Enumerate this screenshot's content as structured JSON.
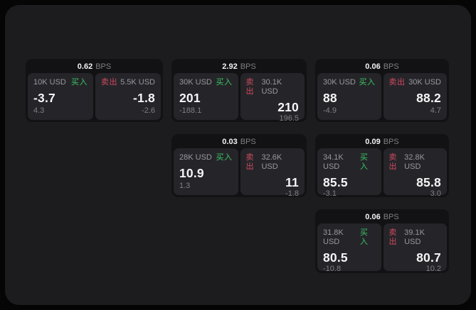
{
  "labels": {
    "buy": "买入",
    "sell": "卖出",
    "bps": "BPS"
  },
  "colors": {
    "buy_green": "#3cc464",
    "sell_red": "#d04a60",
    "window_bg": "#1c1c1e",
    "card_bg": "#121214",
    "pane_bg": "#252529"
  },
  "cards": [
    {
      "bps": "0.62",
      "grid": {
        "col": 1,
        "row": 1
      },
      "buy": {
        "amount": "10K USD",
        "value": "-3.7",
        "sub": "4.3"
      },
      "sell": {
        "amount": "5.5K USD",
        "value": "-1.8",
        "sub": "-2.6"
      }
    },
    {
      "bps": "2.92",
      "grid": {
        "col": 2,
        "row": 1
      },
      "buy": {
        "amount": "30K USD",
        "value": "201",
        "sub": "-188.1"
      },
      "sell": {
        "amount": "30.1K USD",
        "value": "210",
        "sub": "196.5"
      }
    },
    {
      "bps": "0.06",
      "grid": {
        "col": 3,
        "row": 1
      },
      "buy": {
        "amount": "30K USD",
        "value": "88",
        "sub": "-4.9"
      },
      "sell": {
        "amount": "30K USD",
        "value": "88.2",
        "sub": "4.7"
      }
    },
    {
      "bps": "0.03",
      "grid": {
        "col": 2,
        "row": 2
      },
      "buy": {
        "amount": "28K USD",
        "value": "10.9",
        "sub": "1.3"
      },
      "sell": {
        "amount": "32.6K USD",
        "value": "11",
        "sub": "-1.8"
      }
    },
    {
      "bps": "0.09",
      "grid": {
        "col": 3,
        "row": 2
      },
      "buy": {
        "amount": "34.1K USD",
        "value": "85.5",
        "sub": "-3.1"
      },
      "sell": {
        "amount": "32.8K USD",
        "value": "85.8",
        "sub": "3.0"
      }
    },
    {
      "bps": "0.06",
      "grid": {
        "col": 3,
        "row": 3
      },
      "buy": {
        "amount": "31.8K USD",
        "value": "80.5",
        "sub": "-10.8"
      },
      "sell": {
        "amount": "39.1K USD",
        "value": "80.7",
        "sub": "10.2"
      }
    }
  ]
}
